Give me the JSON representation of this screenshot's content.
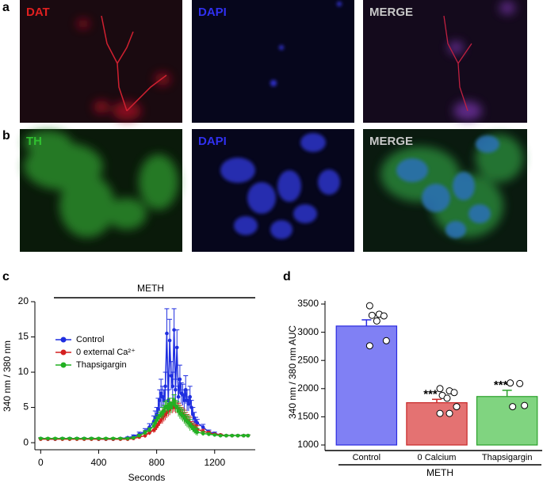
{
  "panel_labels": [
    "a",
    "b",
    "c",
    "d"
  ],
  "images": {
    "rows": [
      [
        "DAT",
        "DAPI",
        "MERGE"
      ],
      [
        "TH",
        "DAPI",
        "MERGE"
      ]
    ]
  },
  "chart_data": [
    {
      "type": "line",
      "annotation": "METH",
      "xlabel": "Seconds",
      "ylabel": "340 nm / 380 nm",
      "xlim": [
        -40,
        1480
      ],
      "ylim": [
        -1,
        20
      ],
      "xticks": [
        0,
        400,
        800,
        1200
      ],
      "yticks": [
        0,
        5,
        10,
        15,
        20
      ],
      "x": [
        0,
        50,
        100,
        150,
        200,
        250,
        300,
        350,
        400,
        450,
        500,
        550,
        600,
        640,
        680,
        720,
        750,
        780,
        790,
        800,
        810,
        820,
        830,
        840,
        850,
        860,
        870,
        880,
        890,
        900,
        910,
        920,
        930,
        940,
        950,
        960,
        970,
        980,
        990,
        1000,
        1010,
        1020,
        1030,
        1040,
        1050,
        1060,
        1070,
        1080,
        1120,
        1160,
        1200,
        1240,
        1280,
        1320,
        1360,
        1400,
        1430
      ],
      "series": [
        {
          "name": "Control",
          "color": "#1f2ee0",
          "values": [
            0.6,
            0.5,
            0.5,
            0.6,
            0.6,
            0.6,
            0.6,
            0.6,
            0.5,
            0.5,
            0.5,
            0.6,
            0.7,
            0.9,
            1.2,
            1.6,
            2.2,
            3,
            3.5,
            4,
            4.8,
            6,
            7,
            6.5,
            6,
            8,
            15.5,
            6,
            14.5,
            9.5,
            8,
            16,
            7.5,
            13.5,
            6.5,
            9,
            7,
            6.8,
            6,
            7.5,
            6,
            5.5,
            6.5,
            5,
            4,
            3.5,
            3,
            2.8,
            2.2,
            1.5,
            1.3,
            1.1,
            1,
            1,
            1,
            1,
            1
          ],
          "errors": [
            0.1,
            0.1,
            0.1,
            0.1,
            0.1,
            0.1,
            0.1,
            0.1,
            0.1,
            0.1,
            0.1,
            0.1,
            0.1,
            0.2,
            0.3,
            0.4,
            0.5,
            0.8,
            1,
            1,
            1.5,
            1.5,
            2,
            1.5,
            1.5,
            2,
            3.5,
            1.5,
            3,
            2,
            2,
            3,
            1.5,
            2.5,
            1.5,
            2,
            1.5,
            1.5,
            1.5,
            2,
            1.5,
            1,
            1.5,
            1,
            1,
            0.8,
            0.6,
            0.5,
            0.4,
            0.3,
            0.2,
            0.1,
            0.1,
            0.1,
            0.1,
            0.1,
            0.1
          ]
        },
        {
          "name": "0 external Ca²⁺",
          "color": "#d42020",
          "values": [
            0.5,
            0.5,
            0.5,
            0.5,
            0.5,
            0.5,
            0.5,
            0.5,
            0.5,
            0.5,
            0.5,
            0.5,
            0.5,
            0.6,
            0.8,
            1,
            1.4,
            1.8,
            2,
            2.3,
            2.6,
            2.9,
            3.2,
            3.5,
            3.8,
            4,
            4.3,
            4.5,
            4.7,
            5,
            5,
            5.2,
            5,
            5,
            4.8,
            4.5,
            4.2,
            4,
            3.8,
            3.5,
            3.2,
            3,
            2.8,
            2.5,
            2.3,
            2.1,
            2,
            1.9,
            1.6,
            1.4,
            1.2,
            1.1,
            1,
            1,
            1,
            1,
            1
          ],
          "errors": [
            0.1,
            0.1,
            0.1,
            0.1,
            0.1,
            0.1,
            0.1,
            0.1,
            0.1,
            0.1,
            0.1,
            0.1,
            0.1,
            0.1,
            0.2,
            0.3,
            0.3,
            0.4,
            0.5,
            0.5,
            0.5,
            0.5,
            0.5,
            0.8,
            0.8,
            0.8,
            0.8,
            0.8,
            0.8,
            0.8,
            0.8,
            0.8,
            0.8,
            0.8,
            0.8,
            0.8,
            0.8,
            0.8,
            0.8,
            0.8,
            0.8,
            0.8,
            0.8,
            0.5,
            0.5,
            0.5,
            0.5,
            0.5,
            0.3,
            0.2,
            0.1,
            0.1,
            0.1,
            0.1,
            0.1,
            0.1,
            0.1
          ]
        },
        {
          "name": "Thapsigargin",
          "color": "#22b022",
          "values": [
            0.6,
            0.6,
            0.6,
            0.6,
            0.6,
            0.6,
            0.6,
            0.6,
            0.6,
            0.6,
            0.6,
            0.6,
            0.6,
            0.7,
            1,
            1.4,
            1.8,
            2.4,
            2.8,
            3.2,
            3.5,
            3.8,
            4,
            4.2,
            4.5,
            5,
            5.2,
            4.8,
            5.5,
            5,
            5.5,
            6,
            5.2,
            5,
            4.5,
            4.2,
            4,
            3.8,
            3.5,
            3.2,
            3,
            2.8,
            2.5,
            2.3,
            2,
            1.8,
            1.6,
            1.5,
            1.3,
            1.2,
            1.1,
            1,
            1,
            1,
            1,
            1,
            1
          ],
          "errors": [
            0.1,
            0.1,
            0.1,
            0.1,
            0.1,
            0.1,
            0.1,
            0.1,
            0.1,
            0.1,
            0.1,
            0.1,
            0.1,
            0.1,
            0.2,
            0.3,
            0.3,
            0.4,
            0.5,
            0.5,
            0.5,
            0.5,
            0.5,
            0.8,
            0.8,
            0.8,
            0.8,
            0.8,
            0.8,
            0.8,
            0.8,
            0.8,
            0.8,
            0.8,
            0.8,
            0.8,
            0.8,
            0.8,
            0.8,
            0.8,
            0.8,
            0.8,
            0.8,
            0.5,
            0.5,
            0.5,
            0.5,
            0.5,
            0.3,
            0.2,
            0.1,
            0.1,
            0.1,
            0.1,
            0.1,
            0.1,
            0.1
          ]
        }
      ]
    },
    {
      "type": "bar",
      "ylabel": "340 nm / 380 nm AUC",
      "group_label": "METH",
      "categories": [
        "Control",
        "0 Calcium",
        "Thapsigargin"
      ],
      "values": [
        3110,
        1750,
        1860
      ],
      "errors": [
        110,
        60,
        110
      ],
      "colors": [
        "#8080f4",
        "#e47272",
        "#80d480"
      ],
      "edge_colors": [
        "#2a2ae0",
        "#c82828",
        "#2aa02a"
      ],
      "significance": [
        null,
        "***",
        "***"
      ],
      "points": [
        [
          3470,
          3320,
          3290,
          3300,
          3200,
          2850,
          2760
        ],
        [
          2000,
          1960,
          1930,
          1880,
          1830,
          1680,
          1560,
          1560
        ],
        [
          2100,
          2090,
          1700,
          1680
        ]
      ],
      "ylim": [
        1000,
        3500
      ],
      "yticks": [
        1000,
        1500,
        2000,
        2500,
        3000,
        3500
      ]
    }
  ]
}
